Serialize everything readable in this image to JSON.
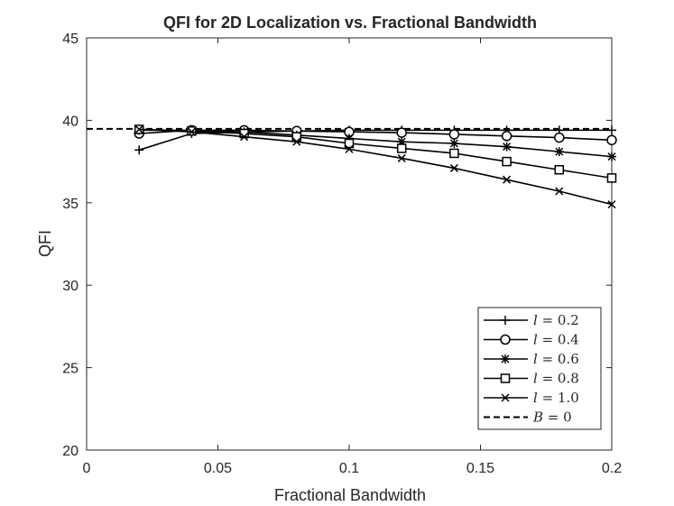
{
  "chart_data": {
    "type": "line",
    "title": "QFI for 2D Localization vs. Fractional Bandwidth",
    "xlabel": "Fractional Bandwidth",
    "ylabel": "QFI",
    "xlim": [
      0,
      0.2
    ],
    "ylim": [
      20,
      45
    ],
    "xticks": [
      0,
      0.05,
      0.1,
      0.15,
      0.2
    ],
    "xtick_labels": [
      "0",
      "0.05",
      "0.1",
      "0.15",
      "0.2"
    ],
    "yticks": [
      20,
      25,
      30,
      35,
      40,
      45
    ],
    "ytick_labels": [
      "20",
      "25",
      "30",
      "35",
      "40",
      "45"
    ],
    "grid": false,
    "legend_position": "bottom-right",
    "x": [
      0.02,
      0.04,
      0.06,
      0.08,
      0.1,
      0.12,
      0.14,
      0.16,
      0.18,
      0.2
    ],
    "series": [
      {
        "name": "l = 0.2",
        "marker": "plus",
        "values": [
          38.2,
          39.2,
          39.3,
          39.35,
          39.4,
          39.4,
          39.4,
          39.4,
          39.4,
          39.4
        ]
      },
      {
        "name": "l = 0.4",
        "marker": "circle",
        "values": [
          39.2,
          39.4,
          39.4,
          39.35,
          39.3,
          39.25,
          39.15,
          39.05,
          38.95,
          38.8
        ]
      },
      {
        "name": "l = 0.6",
        "marker": "star",
        "values": [
          39.4,
          39.4,
          39.3,
          39.1,
          38.9,
          38.7,
          38.6,
          38.4,
          38.1,
          37.8
        ]
      },
      {
        "name": "l = 0.8",
        "marker": "square",
        "values": [
          39.45,
          39.35,
          39.2,
          39.0,
          38.6,
          38.3,
          38.0,
          37.5,
          37.0,
          36.5
        ]
      },
      {
        "name": "l = 1.0",
        "marker": "x",
        "values": [
          39.45,
          39.3,
          39.0,
          38.7,
          38.25,
          37.7,
          37.1,
          36.4,
          35.7,
          34.9
        ]
      }
    ],
    "reference_line": {
      "name": "B = 0",
      "value": 39.48,
      "style": "dashed"
    },
    "legend_labels": [
      {
        "var": "l",
        "text": " = 0.2"
      },
      {
        "var": "l",
        "text": " = 0.4"
      },
      {
        "var": "l",
        "text": " = 0.6"
      },
      {
        "var": "l",
        "text": " = 0.8"
      },
      {
        "var": "l",
        "text": " = 1.0"
      },
      {
        "var": "B",
        "text": " = 0"
      }
    ],
    "colors": {
      "series": "#000000",
      "axes": "#262626",
      "background": "#ffffff"
    }
  }
}
